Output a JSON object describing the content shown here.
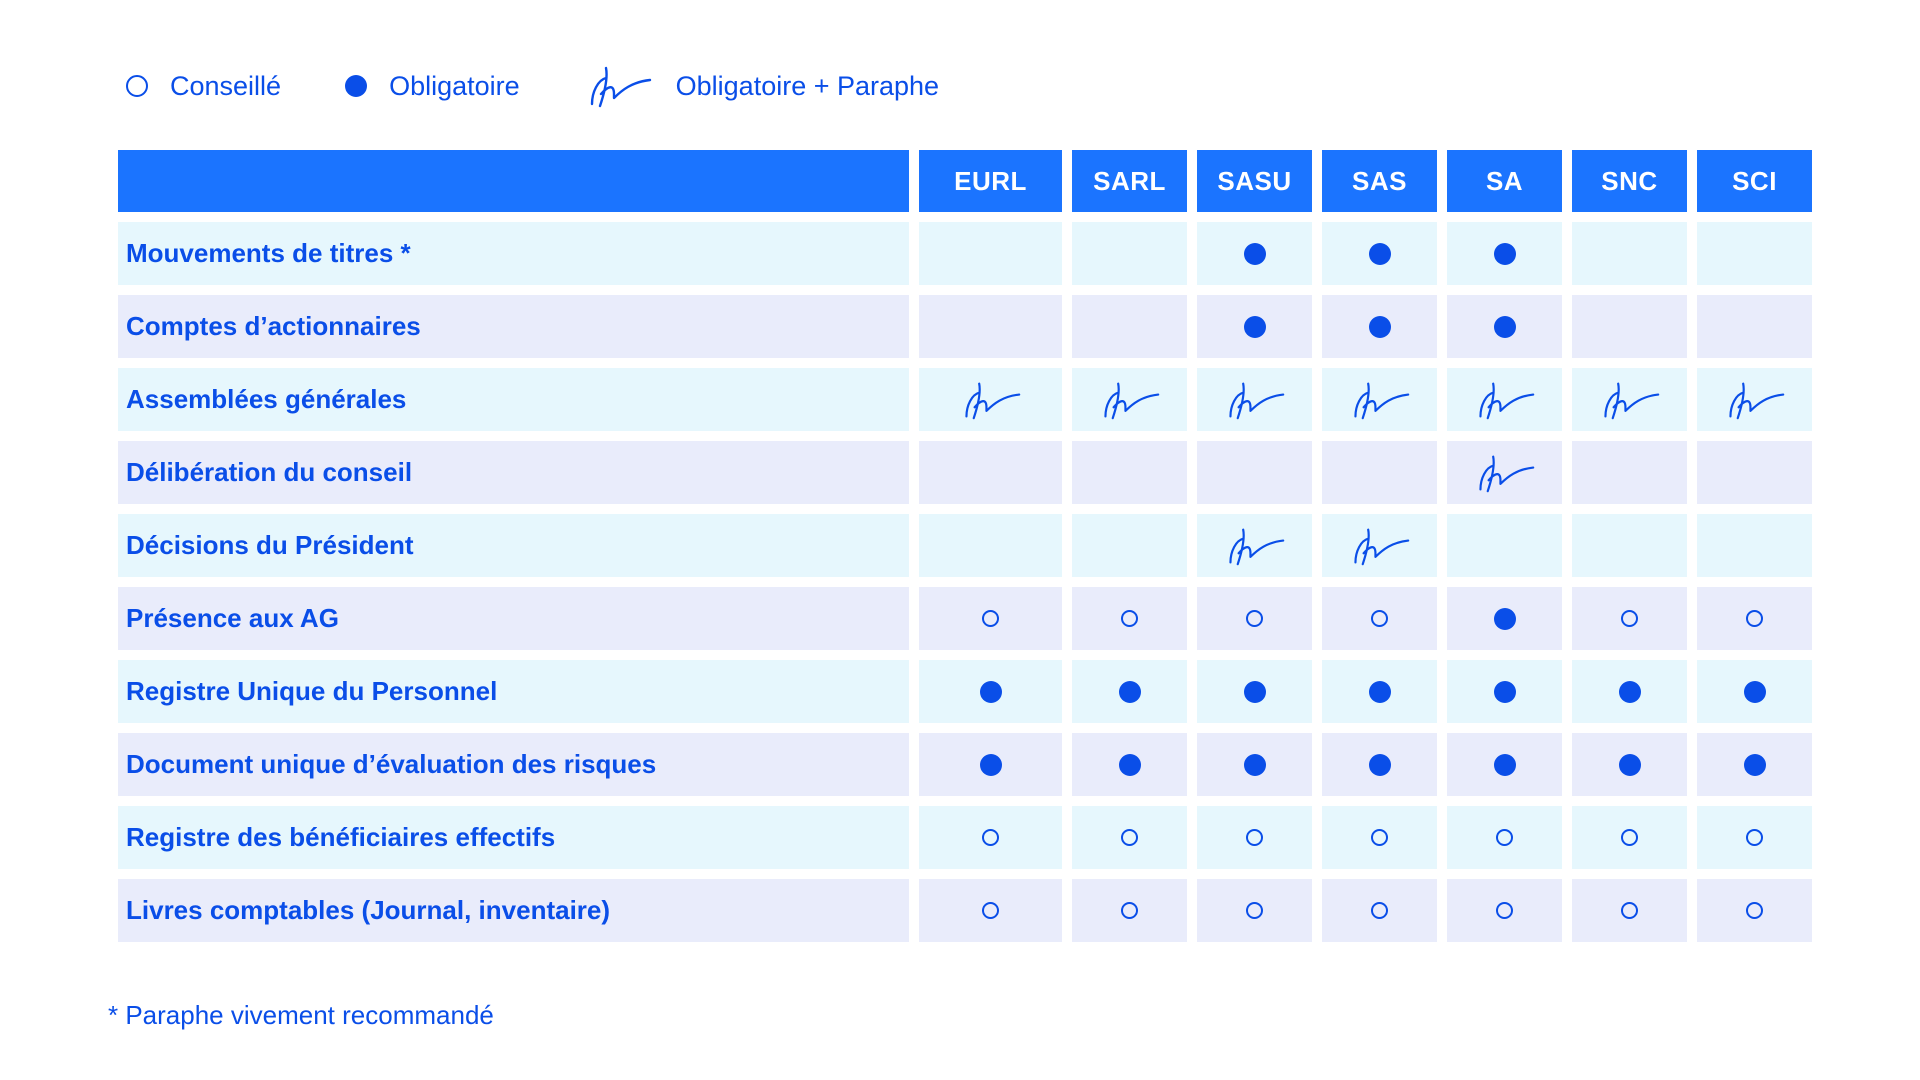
{
  "legend": [
    {
      "symbol": "conseille",
      "label": "Conseillé"
    },
    {
      "symbol": "obligatoire",
      "label": "Obligatoire"
    },
    {
      "symbol": "paraphe",
      "label": "Obligatoire + Paraphe"
    }
  ],
  "colors": {
    "accent": "#0a4ee8",
    "header_bg": "#1b74ff",
    "row_light_cyan": "#e6f7fd",
    "row_light_lavender": "#e9ecfb"
  },
  "columns": [
    "EURL",
    "SARL",
    "SASU",
    "SAS",
    "SA",
    "SNC",
    "SCI"
  ],
  "rows": [
    {
      "label": "Mouvements de titres *",
      "cells": [
        "",
        "",
        "obligatoire",
        "obligatoire",
        "obligatoire",
        "",
        ""
      ]
    },
    {
      "label": "Comptes d’actionnaires",
      "cells": [
        "",
        "",
        "obligatoire",
        "obligatoire",
        "obligatoire",
        "",
        ""
      ]
    },
    {
      "label": "Assemblées générales",
      "cells": [
        "paraphe",
        "paraphe",
        "paraphe",
        "paraphe",
        "paraphe",
        "paraphe",
        "paraphe"
      ]
    },
    {
      "label": "Délibération du conseil",
      "cells": [
        "",
        "",
        "",
        "",
        "paraphe",
        "",
        ""
      ]
    },
    {
      "label": "Décisions du Président",
      "cells": [
        "",
        "",
        "paraphe",
        "paraphe",
        "",
        "",
        ""
      ]
    },
    {
      "label": "Présence aux AG",
      "cells": [
        "conseille",
        "conseille",
        "conseille",
        "conseille",
        "obligatoire",
        "conseille",
        "conseille"
      ]
    },
    {
      "label": "Registre Unique du Personnel",
      "cells": [
        "obligatoire",
        "obligatoire",
        "obligatoire",
        "obligatoire",
        "obligatoire",
        "obligatoire",
        "obligatoire"
      ]
    },
    {
      "label": "Document unique d’évaluation des risques",
      "cells": [
        "obligatoire",
        "obligatoire",
        "obligatoire",
        "obligatoire",
        "obligatoire",
        "obligatoire",
        "obligatoire"
      ]
    },
    {
      "label": "Registre des bénéficiaires effectifs",
      "cells": [
        "conseille",
        "conseille",
        "conseille",
        "conseille",
        "conseille",
        "conseille",
        "conseille"
      ]
    },
    {
      "label": "Livres comptables (Journal, inventaire)",
      "cells": [
        "conseille",
        "conseille",
        "conseille",
        "conseille",
        "conseille",
        "conseille",
        "conseille"
      ]
    }
  ],
  "footnote": "* Paraphe vivement recommandé"
}
